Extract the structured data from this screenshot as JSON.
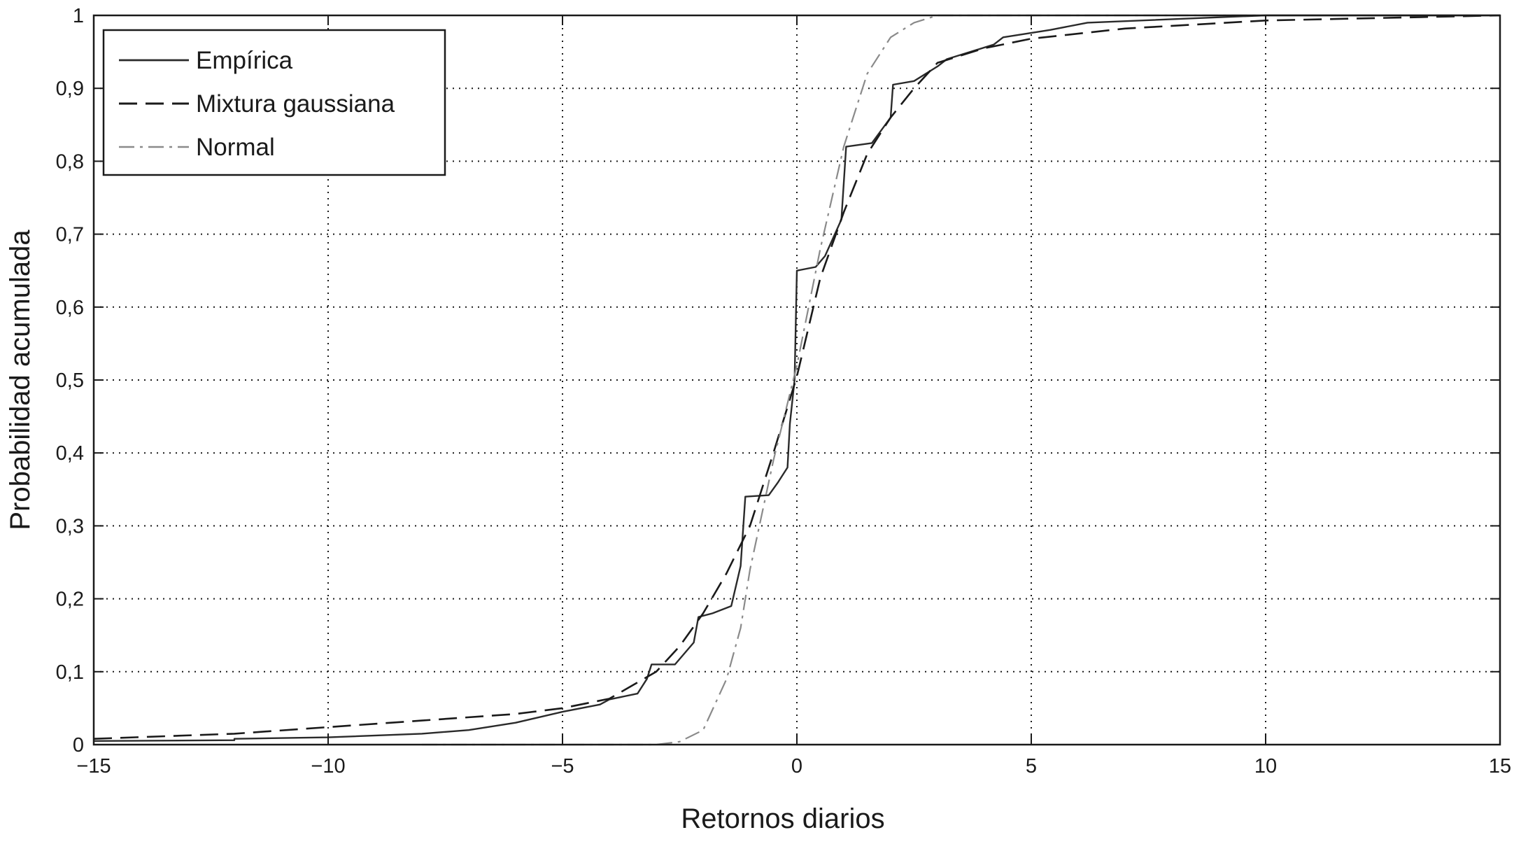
{
  "chart_data": {
    "type": "line",
    "title": "",
    "xlabel": "Retornos diarios",
    "ylabel": "Probabilidad acumulada",
    "xlim": [
      -15,
      15
    ],
    "ylim": [
      0,
      1
    ],
    "grid": true,
    "legend_position": "top-left",
    "x_ticks": [
      -15,
      -10,
      -5,
      0,
      5,
      10,
      15
    ],
    "x_tick_labels": [
      "−15",
      "−10",
      "−5",
      "0",
      "5",
      "10",
      "15"
    ],
    "y_ticks": [
      0,
      0.1,
      0.2,
      0.3,
      0.4,
      0.5,
      0.6,
      0.7,
      0.8,
      0.9,
      1
    ],
    "y_tick_labels": [
      "0",
      "0,1",
      "0,2",
      "0,3",
      "0,4",
      "0,5",
      "0,6",
      "0,7",
      "0,8",
      "0,9",
      "1"
    ],
    "series": [
      {
        "name": "Empírica",
        "style": "solid",
        "color": "#2a2a2a",
        "points": [
          [
            -15,
            0.005
          ],
          [
            -12,
            0.006
          ],
          [
            -12,
            0.008
          ],
          [
            -10,
            0.01
          ],
          [
            -8,
            0.015
          ],
          [
            -7,
            0.02
          ],
          [
            -6,
            0.03
          ],
          [
            -5,
            0.045
          ],
          [
            -4.2,
            0.055
          ],
          [
            -4,
            0.062
          ],
          [
            -3.4,
            0.07
          ],
          [
            -3.2,
            0.09
          ],
          [
            -3.1,
            0.11
          ],
          [
            -2.6,
            0.11
          ],
          [
            -2.2,
            0.14
          ],
          [
            -2.1,
            0.175
          ],
          [
            -1.8,
            0.18
          ],
          [
            -1.4,
            0.19
          ],
          [
            -1.2,
            0.245
          ],
          [
            -1.1,
            0.34
          ],
          [
            -0.6,
            0.342
          ],
          [
            -0.4,
            0.36
          ],
          [
            -0.2,
            0.38
          ],
          [
            -0.15,
            0.44
          ],
          [
            -0.05,
            0.5
          ],
          [
            0,
            0.65
          ],
          [
            0.4,
            0.655
          ],
          [
            0.6,
            0.67
          ],
          [
            0.95,
            0.72
          ],
          [
            1.05,
            0.82
          ],
          [
            1.6,
            0.825
          ],
          [
            2.0,
            0.86
          ],
          [
            2.05,
            0.905
          ],
          [
            2.5,
            0.91
          ],
          [
            3.0,
            0.93
          ],
          [
            3.2,
            0.94
          ],
          [
            4.2,
            0.96
          ],
          [
            4.4,
            0.97
          ],
          [
            5.4,
            0.98
          ],
          [
            6.2,
            0.99
          ],
          [
            10,
            1.0
          ],
          [
            15,
            1.0
          ]
        ]
      },
      {
        "name": "Mixtura gaussiana",
        "style": "dashed",
        "color": "#1a1a1a",
        "points": [
          [
            -15,
            0.008
          ],
          [
            -12,
            0.015
          ],
          [
            -10,
            0.024
          ],
          [
            -8,
            0.033
          ],
          [
            -6,
            0.042
          ],
          [
            -5,
            0.05
          ],
          [
            -4,
            0.063
          ],
          [
            -3,
            0.1
          ],
          [
            -2.5,
            0.135
          ],
          [
            -2,
            0.18
          ],
          [
            -1.5,
            0.235
          ],
          [
            -1,
            0.3
          ],
          [
            -0.5,
            0.4
          ],
          [
            0,
            0.505
          ],
          [
            0.5,
            0.64
          ],
          [
            1,
            0.73
          ],
          [
            1.5,
            0.81
          ],
          [
            2,
            0.86
          ],
          [
            2.5,
            0.9
          ],
          [
            3,
            0.935
          ],
          [
            4,
            0.955
          ],
          [
            5,
            0.968
          ],
          [
            7,
            0.982
          ],
          [
            10,
            0.993
          ],
          [
            15,
            1.0
          ]
        ]
      },
      {
        "name": "Normal",
        "style": "dashdot",
        "color": "#8a8a8a",
        "points": [
          [
            -8,
            0.0
          ],
          [
            -3,
            0.0
          ],
          [
            -2.5,
            0.004
          ],
          [
            -2,
            0.02
          ],
          [
            -1.5,
            0.09
          ],
          [
            -1.2,
            0.16
          ],
          [
            -1,
            0.24
          ],
          [
            -0.5,
            0.39
          ],
          [
            0,
            0.52
          ],
          [
            0.5,
            0.68
          ],
          [
            1,
            0.82
          ],
          [
            1.5,
            0.92
          ],
          [
            2,
            0.97
          ],
          [
            2.5,
            0.99
          ],
          [
            3,
            1.0
          ],
          [
            15,
            1.0
          ]
        ]
      }
    ]
  }
}
